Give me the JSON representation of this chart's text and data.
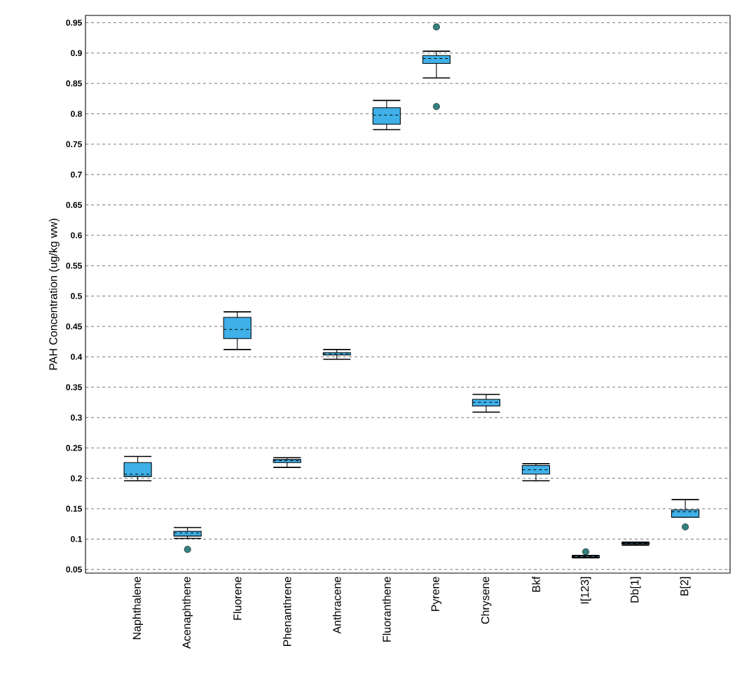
{
  "chart_data": {
    "type": "box",
    "ylabel": "PAH Concentration (ug/kg ww)",
    "categories": [
      "Naphthalene",
      "Acenaphthene",
      "Fluorene",
      "Phenanthrene",
      "Anthracene",
      "Fluoranthene",
      "Pyrene",
      "Chrysene",
      "Bkf",
      "I[123]",
      "Db[1]",
      "B[2]"
    ],
    "boxes": [
      {
        "low": 0.196,
        "q1": 0.203,
        "median": 0.207,
        "q3": 0.226,
        "high": 0.236
      },
      {
        "low": 0.101,
        "q1": 0.105,
        "median": 0.11,
        "q3": 0.113,
        "high": 0.119,
        "outliers": [
          0.083
        ]
      },
      {
        "low": 0.412,
        "q1": 0.43,
        "median": 0.445,
        "q3": 0.465,
        "high": 0.474
      },
      {
        "low": 0.218,
        "q1": 0.226,
        "median": 0.229,
        "q3": 0.231,
        "high": 0.234
      },
      {
        "low": 0.396,
        "q1": 0.403,
        "median": 0.405,
        "q3": 0.407,
        "high": 0.412
      },
      {
        "low": 0.774,
        "q1": 0.783,
        "median": 0.798,
        "q3": 0.81,
        "high": 0.822
      },
      {
        "low": 0.859,
        "q1": 0.883,
        "median": 0.891,
        "q3": 0.896,
        "high": 0.903,
        "outliers": [
          0.943,
          0.812
        ]
      },
      {
        "low": 0.309,
        "q1": 0.319,
        "median": 0.325,
        "q3": 0.33,
        "high": 0.338
      },
      {
        "low": 0.196,
        "q1": 0.207,
        "median": 0.214,
        "q3": 0.221,
        "high": 0.224
      },
      {
        "low": 0.069,
        "q1": 0.07,
        "median": 0.071,
        "q3": 0.072,
        "high": 0.073,
        "outliers": [
          0.079
        ]
      },
      {
        "low": 0.09,
        "q1": 0.092,
        "median": 0.093,
        "q3": 0.094,
        "high": 0.095
      },
      {
        "low": 0.136,
        "q1": 0.136,
        "median": 0.145,
        "q3": 0.148,
        "high": 0.165,
        "outliers": [
          0.12
        ]
      }
    ],
    "color": "#3fb0e8",
    "ylim": [
      0.044,
      0.962
    ],
    "yticks": [
      0.05,
      0.1,
      0.15,
      0.2,
      0.25,
      0.3,
      0.35,
      0.4,
      0.45,
      0.5,
      0.55,
      0.6,
      0.65,
      0.7,
      0.75,
      0.8,
      0.85,
      0.9,
      0.95
    ],
    "grid": "y"
  }
}
